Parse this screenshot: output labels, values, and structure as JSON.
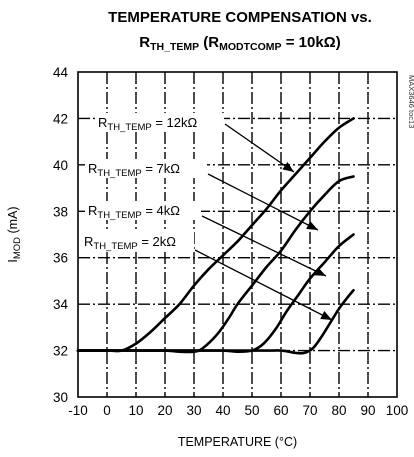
{
  "chart_data": {
    "type": "line",
    "title_parts": [
      {
        "text": "TEMPERATURE COMPENSATION vs.",
        "sub": false
      },
      {
        "text": "\n",
        "sub": false
      },
      {
        "text": "R",
        "sub": false
      },
      {
        "text": "TH_TEMP",
        "sub": true
      },
      {
        "text": " (R",
        "sub": false
      },
      {
        "text": "MODTCOMP",
        "sub": true
      },
      {
        "text": " = 10kΩ)",
        "sub": false
      }
    ],
    "xlabel": "TEMPERATURE (°C)",
    "ylabel_parts": [
      {
        "text": "I",
        "sub": false
      },
      {
        "text": "MOD",
        "sub": true
      },
      {
        "text": " (mA)",
        "sub": false
      }
    ],
    "xlim": [
      -10,
      100
    ],
    "ylim": [
      30,
      44
    ],
    "xticks": [
      -10,
      0,
      10,
      20,
      30,
      40,
      50,
      60,
      70,
      80,
      90,
      100
    ],
    "yticks": [
      30,
      32,
      34,
      36,
      38,
      40,
      42,
      44
    ],
    "grid": true,
    "figure_id": "MAX3646 toc13",
    "series": [
      {
        "name": "RTH_TEMP = 12kΩ",
        "label_parts": [
          {
            "text": "R",
            "sub": false
          },
          {
            "text": "TH_TEMP",
            "sub": true
          },
          {
            "text": " = 12kΩ",
            "sub": false
          }
        ],
        "points": [
          [
            -10,
            32.0
          ],
          [
            0,
            32.0
          ],
          [
            5,
            32.0
          ],
          [
            10,
            32.3
          ],
          [
            15,
            32.8
          ],
          [
            20,
            33.4
          ],
          [
            25,
            34.0
          ],
          [
            30,
            34.8
          ],
          [
            35,
            35.5
          ],
          [
            40,
            36.1
          ],
          [
            45,
            36.7
          ],
          [
            50,
            37.4
          ],
          [
            55,
            38.1
          ],
          [
            60,
            38.9
          ],
          [
            65,
            39.6
          ],
          [
            70,
            40.3
          ],
          [
            75,
            41.0
          ],
          [
            80,
            41.6
          ],
          [
            85,
            42.0
          ]
        ]
      },
      {
        "name": "RTH_TEMP = 7kΩ",
        "label_parts": [
          {
            "text": "R",
            "sub": false
          },
          {
            "text": "TH_TEMP",
            "sub": true
          },
          {
            "text": " = 7kΩ",
            "sub": false
          }
        ],
        "points": [
          [
            -10,
            32.0
          ],
          [
            10,
            32.0
          ],
          [
            20,
            32.0
          ],
          [
            25,
            31.95
          ],
          [
            30,
            31.95
          ],
          [
            33,
            32.1
          ],
          [
            38,
            32.7
          ],
          [
            42,
            33.4
          ],
          [
            45,
            34.0
          ],
          [
            50,
            34.8
          ],
          [
            55,
            35.6
          ],
          [
            60,
            36.3
          ],
          [
            65,
            37.2
          ],
          [
            70,
            38.0
          ],
          [
            75,
            38.7
          ],
          [
            80,
            39.3
          ],
          [
            85,
            39.5
          ]
        ]
      },
      {
        "name": "RTH_TEMP = 4kΩ",
        "label_parts": [
          {
            "text": "R",
            "sub": false
          },
          {
            "text": "TH_TEMP",
            "sub": true
          },
          {
            "text": " = 4kΩ",
            "sub": false
          }
        ],
        "points": [
          [
            -10,
            32.0
          ],
          [
            30,
            32.0
          ],
          [
            40,
            32.0
          ],
          [
            45,
            31.95
          ],
          [
            50,
            32.0
          ],
          [
            54,
            32.3
          ],
          [
            58,
            32.9
          ],
          [
            62,
            33.7
          ],
          [
            66,
            34.4
          ],
          [
            70,
            35.1
          ],
          [
            75,
            35.8
          ],
          [
            80,
            36.5
          ],
          [
            85,
            37.0
          ]
        ]
      },
      {
        "name": "RTH_TEMP = 2kΩ",
        "label_parts": [
          {
            "text": "R",
            "sub": false
          },
          {
            "text": "TH_TEMP",
            "sub": true
          },
          {
            "text": " = 2kΩ",
            "sub": false
          }
        ],
        "points": [
          [
            -10,
            32.0
          ],
          [
            50,
            32.0
          ],
          [
            60,
            32.0
          ],
          [
            65,
            31.9
          ],
          [
            68,
            31.9
          ],
          [
            71,
            32.1
          ],
          [
            74,
            32.6
          ],
          [
            77,
            33.2
          ],
          [
            80,
            33.8
          ],
          [
            83,
            34.3
          ],
          [
            85,
            34.6
          ]
        ]
      }
    ]
  }
}
